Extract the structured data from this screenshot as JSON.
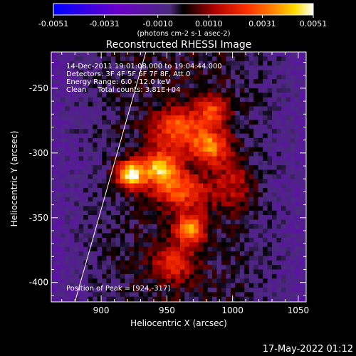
{
  "chart_data": {
    "type": "heatmap",
    "title": "Reconstructed RHESSI Image",
    "xlabel": "Heliocentric X (arcsec)",
    "ylabel": "Heliocentric Y (arcsec)",
    "xlim": [
      862,
      1056
    ],
    "ylim": [
      -415,
      -222
    ],
    "x_ticks": [
      900,
      950,
      1000,
      1050
    ],
    "x_tick_labels": [
      "900",
      "950",
      "1000",
      "1050"
    ],
    "y_ticks": [
      -250,
      -300,
      -350,
      -400
    ],
    "y_tick_labels": [
      "-250",
      "-300",
      "-350",
      "-400"
    ],
    "grid": false,
    "colorbar": {
      "min": -0.0051,
      "max": 0.0051,
      "ticks": [
        -0.0051,
        -0.0031,
        -0.001,
        0.001,
        0.0031,
        0.0051
      ],
      "tick_labels": [
        "-0.0051",
        "-0.0031",
        "-0.0010",
        "0.0010",
        "0.0031",
        "0.0051"
      ],
      "unit_label": "(photons cm-2 s-1 asec-2)",
      "colormap": [
        "#0000ff",
        "#6a00c8",
        "#4a2a7a",
        "#000000",
        "#b00000",
        "#ff3300",
        "#ff8800",
        "#ffdd00",
        "#ffffff"
      ]
    },
    "sources": [
      {
        "x": 922,
        "y": -317,
        "peak": 0.0051,
        "sigma_x": 7,
        "sigma_y": 7
      },
      {
        "x": 945,
        "y": -312,
        "peak": 0.0042,
        "sigma_x": 11,
        "sigma_y": 10
      },
      {
        "x": 983,
        "y": -295,
        "peak": 0.0036,
        "sigma_x": 10,
        "sigma_y": 9
      },
      {
        "x": 958,
        "y": -280,
        "peak": 0.003,
        "sigma_x": 13,
        "sigma_y": 10
      },
      {
        "x": 962,
        "y": -330,
        "peak": 0.0026,
        "sigma_x": 14,
        "sigma_y": 9
      },
      {
        "x": 968,
        "y": -358,
        "peak": 0.0038,
        "sigma_x": 8,
        "sigma_y": 8
      },
      {
        "x": 955,
        "y": -385,
        "peak": 0.0022,
        "sigma_x": 11,
        "sigma_y": 10
      },
      {
        "x": 985,
        "y": -268,
        "peak": 0.0026,
        "sigma_x": 9,
        "sigma_y": 8
      },
      {
        "x": 1000,
        "y": -325,
        "peak": 0.0017,
        "sigma_x": 11,
        "sigma_y": 13
      }
    ],
    "limb_line": [
      [
        880,
        -415
      ],
      [
        934,
        -222
      ]
    ],
    "annotations": [
      "14-Dec-2011 19:01:08.000 to 19:04:44.000",
      "Detectors: 3F 4F 5F 6F 7F 8F, Att 0",
      "Energy Range: 6.0 - 12.0 keV",
      "Clean     Total counts: 3.81E+04"
    ],
    "peak_label": "Position of Peak = [924,-317]"
  },
  "footer_timestamp": "17-May-2022 01:12"
}
